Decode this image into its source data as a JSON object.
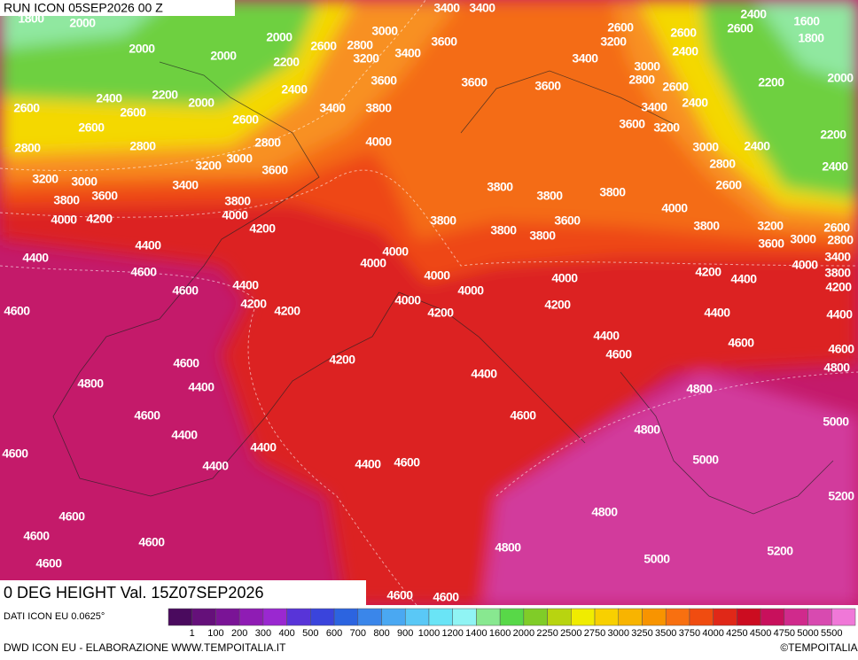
{
  "header": {
    "run": "RUN ICON 05SEP2026 00 Z"
  },
  "contour_labels": [
    1800,
    2000,
    2000,
    2000,
    2000,
    2200,
    2600,
    2800,
    3000,
    3400,
    3400,
    3200,
    3400,
    3600,
    2600,
    3200,
    2600,
    2400,
    1600,
    2600,
    1800,
    3400,
    2400,
    3000,
    2800,
    2600,
    2200,
    2000,
    2400,
    2200,
    2600,
    2000,
    2400,
    3600,
    3600,
    3600,
    3400,
    2400,
    2600,
    2600,
    2600,
    3400,
    3800,
    3600,
    3200,
    2200,
    2800,
    2800,
    2800,
    4000,
    3000,
    2400,
    3000,
    3200,
    3600,
    2800,
    2400,
    3200,
    3000,
    3400,
    3800,
    3800,
    3800,
    2600,
    3800,
    3600,
    3800,
    4000,
    4000,
    4200,
    3800,
    4000,
    3600,
    4200,
    3800,
    3800,
    3800,
    3200,
    2600,
    2800,
    3600,
    3000,
    4400,
    4000,
    3400,
    4400,
    4000,
    4000,
    3800,
    4600,
    4000,
    4200,
    4400,
    4200,
    4400,
    4600,
    4000,
    4000,
    4200,
    4200,
    4000,
    4200,
    4200,
    4400,
    4400,
    4600,
    4400,
    4600,
    4600,
    4200,
    4600,
    4600,
    4800,
    4800,
    4400,
    4400,
    4800,
    4600,
    4600,
    4800,
    5000,
    4400,
    4400,
    4600,
    4400,
    4400,
    4600,
    5000,
    5200,
    4600,
    4800,
    4600,
    4600,
    4800,
    5000,
    5200,
    4600,
    4600,
    4600
  ],
  "footer": {
    "valid": "0 DEG HEIGHT Val. 15Z07SEP2026",
    "source": "DATI ICON EU 0.0625°",
    "credit": "DWD ICON EU - ELABORAZIONE WWW.TEMPOITALIA.IT",
    "copyright": "©TEMPOITALIA"
  },
  "colorbar": {
    "labels": [
      1,
      100,
      200,
      300,
      400,
      500,
      600,
      700,
      800,
      900,
      1000,
      1200,
      1400,
      1600,
      2000,
      2250,
      2500,
      2750,
      3000,
      3250,
      3500,
      3750,
      4000,
      4250,
      4500,
      4750,
      5000,
      5500
    ],
    "colors": [
      "#4a0a5e",
      "#65107a",
      "#7a1496",
      "#8f1cb4",
      "#9a28d0",
      "#5834d8",
      "#3a44dc",
      "#2c64e0",
      "#3a86ea",
      "#4aa8f2",
      "#5ac8f6",
      "#6ae4f6",
      "#90f4f4",
      "#88e890",
      "#58d848",
      "#80cc28",
      "#b8d410",
      "#f0ec00",
      "#f8d000",
      "#f8b400",
      "#f89400",
      "#f87010",
      "#f04c10",
      "#e02818",
      "#cc0c20",
      "#c8105c",
      "#d02a8c",
      "#d84ab0",
      "#f078d8"
    ]
  }
}
